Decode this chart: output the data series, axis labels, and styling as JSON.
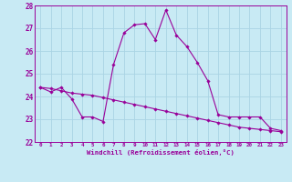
{
  "xlabel": "Windchill (Refroidissement éolien,°C)",
  "hours": [
    0,
    1,
    2,
    3,
    4,
    5,
    6,
    7,
    8,
    9,
    10,
    11,
    12,
    13,
    14,
    15,
    16,
    17,
    18,
    19,
    20,
    21,
    22,
    23
  ],
  "temp_line": [
    24.4,
    24.2,
    24.4,
    23.9,
    23.1,
    23.1,
    22.9,
    25.4,
    26.8,
    27.15,
    27.2,
    26.5,
    27.8,
    26.7,
    26.2,
    25.5,
    24.7,
    23.2,
    23.1,
    23.1,
    23.1,
    23.1,
    22.6,
    22.5
  ],
  "wind_line": [
    24.4,
    24.35,
    24.25,
    24.15,
    24.1,
    24.05,
    23.95,
    23.85,
    23.75,
    23.65,
    23.55,
    23.45,
    23.35,
    23.25,
    23.15,
    23.05,
    22.95,
    22.85,
    22.75,
    22.65,
    22.6,
    22.55,
    22.5,
    22.45
  ],
  "line_color": "#990099",
  "bg_color": "#c8eaf4",
  "grid_color": "#aad4e4",
  "ylim": [
    22,
    28
  ],
  "xlim": [
    0,
    23
  ],
  "yticks": [
    22,
    23,
    24,
    25,
    26,
    27,
    28
  ]
}
